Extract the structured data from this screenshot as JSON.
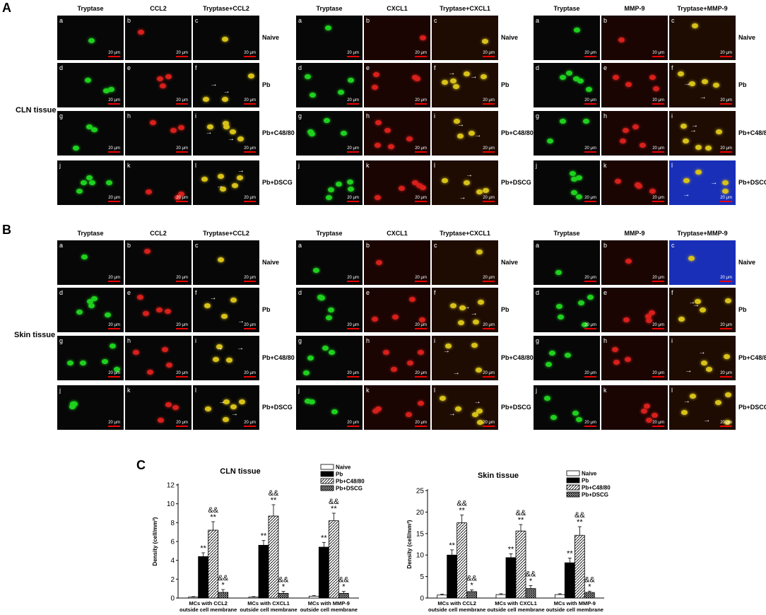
{
  "labels": {
    "A": "A",
    "B": "B",
    "C": "C"
  },
  "tissues": {
    "cln": "CLN tissue",
    "skin": "Skin tissue"
  },
  "groups": [
    "Naive",
    "Pb",
    "Pb+C48/80",
    "Pb+DSCG"
  ],
  "letters": [
    "a",
    "b",
    "c",
    "d",
    "e",
    "f",
    "g",
    "h",
    "i",
    "j",
    "k",
    "l"
  ],
  "scale_bar": "20 μm",
  "A_markers": [
    {
      "headers": [
        "Tryptase",
        "CCL2",
        "Tryptase+CCL2"
      ]
    },
    {
      "headers": [
        "Tryptase",
        "CXCL1",
        "Tryptase+CXCL1"
      ]
    },
    {
      "headers": [
        "Tryptase",
        "MMP-9",
        "Tryptase+MMP-9"
      ]
    }
  ],
  "B_markers": [
    {
      "headers": [
        "Tryptase",
        "CCL2",
        "Tryptase+CCL2"
      ]
    },
    {
      "headers": [
        "Tryptase",
        "CXCL1",
        "Tryptase+CXCL1"
      ]
    },
    {
      "headers": [
        "Tryptase",
        "MMP-9",
        "Tryptase+MMP-9"
      ]
    }
  ],
  "colors": {
    "green": "#1fd11f",
    "red": "#d8201c",
    "merge": "#d8c21a",
    "blue": "#1a2fb8"
  },
  "chart_data": [
    {
      "type": "bar",
      "title": "CLN tissue",
      "ylabel": "Density (cell/mm²)",
      "ylim": [
        0,
        12
      ],
      "yticks": [
        0,
        2,
        4,
        6,
        8,
        10,
        12
      ],
      "categories": [
        [
          "MCs with CCL2",
          "outside cell membrane"
        ],
        [
          "MCs with CXCL1",
          "outside cell membrane"
        ],
        [
          "MCs with MMP-9",
          "outside cell membrane"
        ]
      ],
      "legend_position": "top-right",
      "series": [
        {
          "name": "Naive",
          "values": [
            0.1,
            0.1,
            0.2
          ],
          "err": [
            0.05,
            0.05,
            0.05
          ],
          "annot": [
            "",
            "",
            ""
          ]
        },
        {
          "name": "Pb",
          "values": [
            4.4,
            5.6,
            5.4
          ],
          "err": [
            0.4,
            0.5,
            0.5
          ],
          "annot": [
            "**",
            "**",
            "**"
          ]
        },
        {
          "name": "Pb+C48/80",
          "values": [
            7.2,
            8.7,
            8.2
          ],
          "err": [
            0.9,
            1.2,
            0.8
          ],
          "annot": [
            "&&\n**",
            "&&\n**",
            "&&\n**"
          ]
        },
        {
          "name": "Pb+DSCG",
          "values": [
            0.6,
            0.5,
            0.5
          ],
          "err": [
            0.3,
            0.2,
            0.2
          ],
          "annot": [
            "&&\n*",
            "&&\n*",
            "&&\n*"
          ]
        }
      ]
    },
    {
      "type": "bar",
      "title": "Skin tissue",
      "ylabel": "Density (cell/mm²)",
      "ylim": [
        0,
        25
      ],
      "yticks": [
        0,
        5,
        10,
        15,
        20,
        25
      ],
      "categories": [
        [
          "MCs with CCL2",
          "outside cell membrane"
        ],
        [
          "MCs with CXCL1",
          "outside cell membrane"
        ],
        [
          "MCs with MMP-9",
          "outside cell membrane"
        ]
      ],
      "legend_position": "top-right",
      "series": [
        {
          "name": "Naive",
          "values": [
            0.7,
            0.8,
            0.8
          ],
          "err": [
            0.2,
            0.2,
            0.2
          ],
          "annot": [
            "",
            "",
            ""
          ]
        },
        {
          "name": "Pb",
          "values": [
            10.0,
            9.4,
            8.2
          ],
          "err": [
            1.2,
            0.9,
            1.1
          ],
          "annot": [
            "**",
            "**",
            "**"
          ]
        },
        {
          "name": "Pb+C48/80",
          "values": [
            17.5,
            15.6,
            14.6
          ],
          "err": [
            1.8,
            1.5,
            2.0
          ],
          "annot": [
            "&&\n**",
            "&&\n**",
            "&&\n**"
          ]
        },
        {
          "name": "Pb+DSCG",
          "values": [
            1.5,
            2.2,
            1.3
          ],
          "err": [
            0.4,
            0.7,
            0.3
          ],
          "annot": [
            "&&\n*",
            "&&\n*",
            "&&\n*"
          ]
        }
      ]
    }
  ]
}
